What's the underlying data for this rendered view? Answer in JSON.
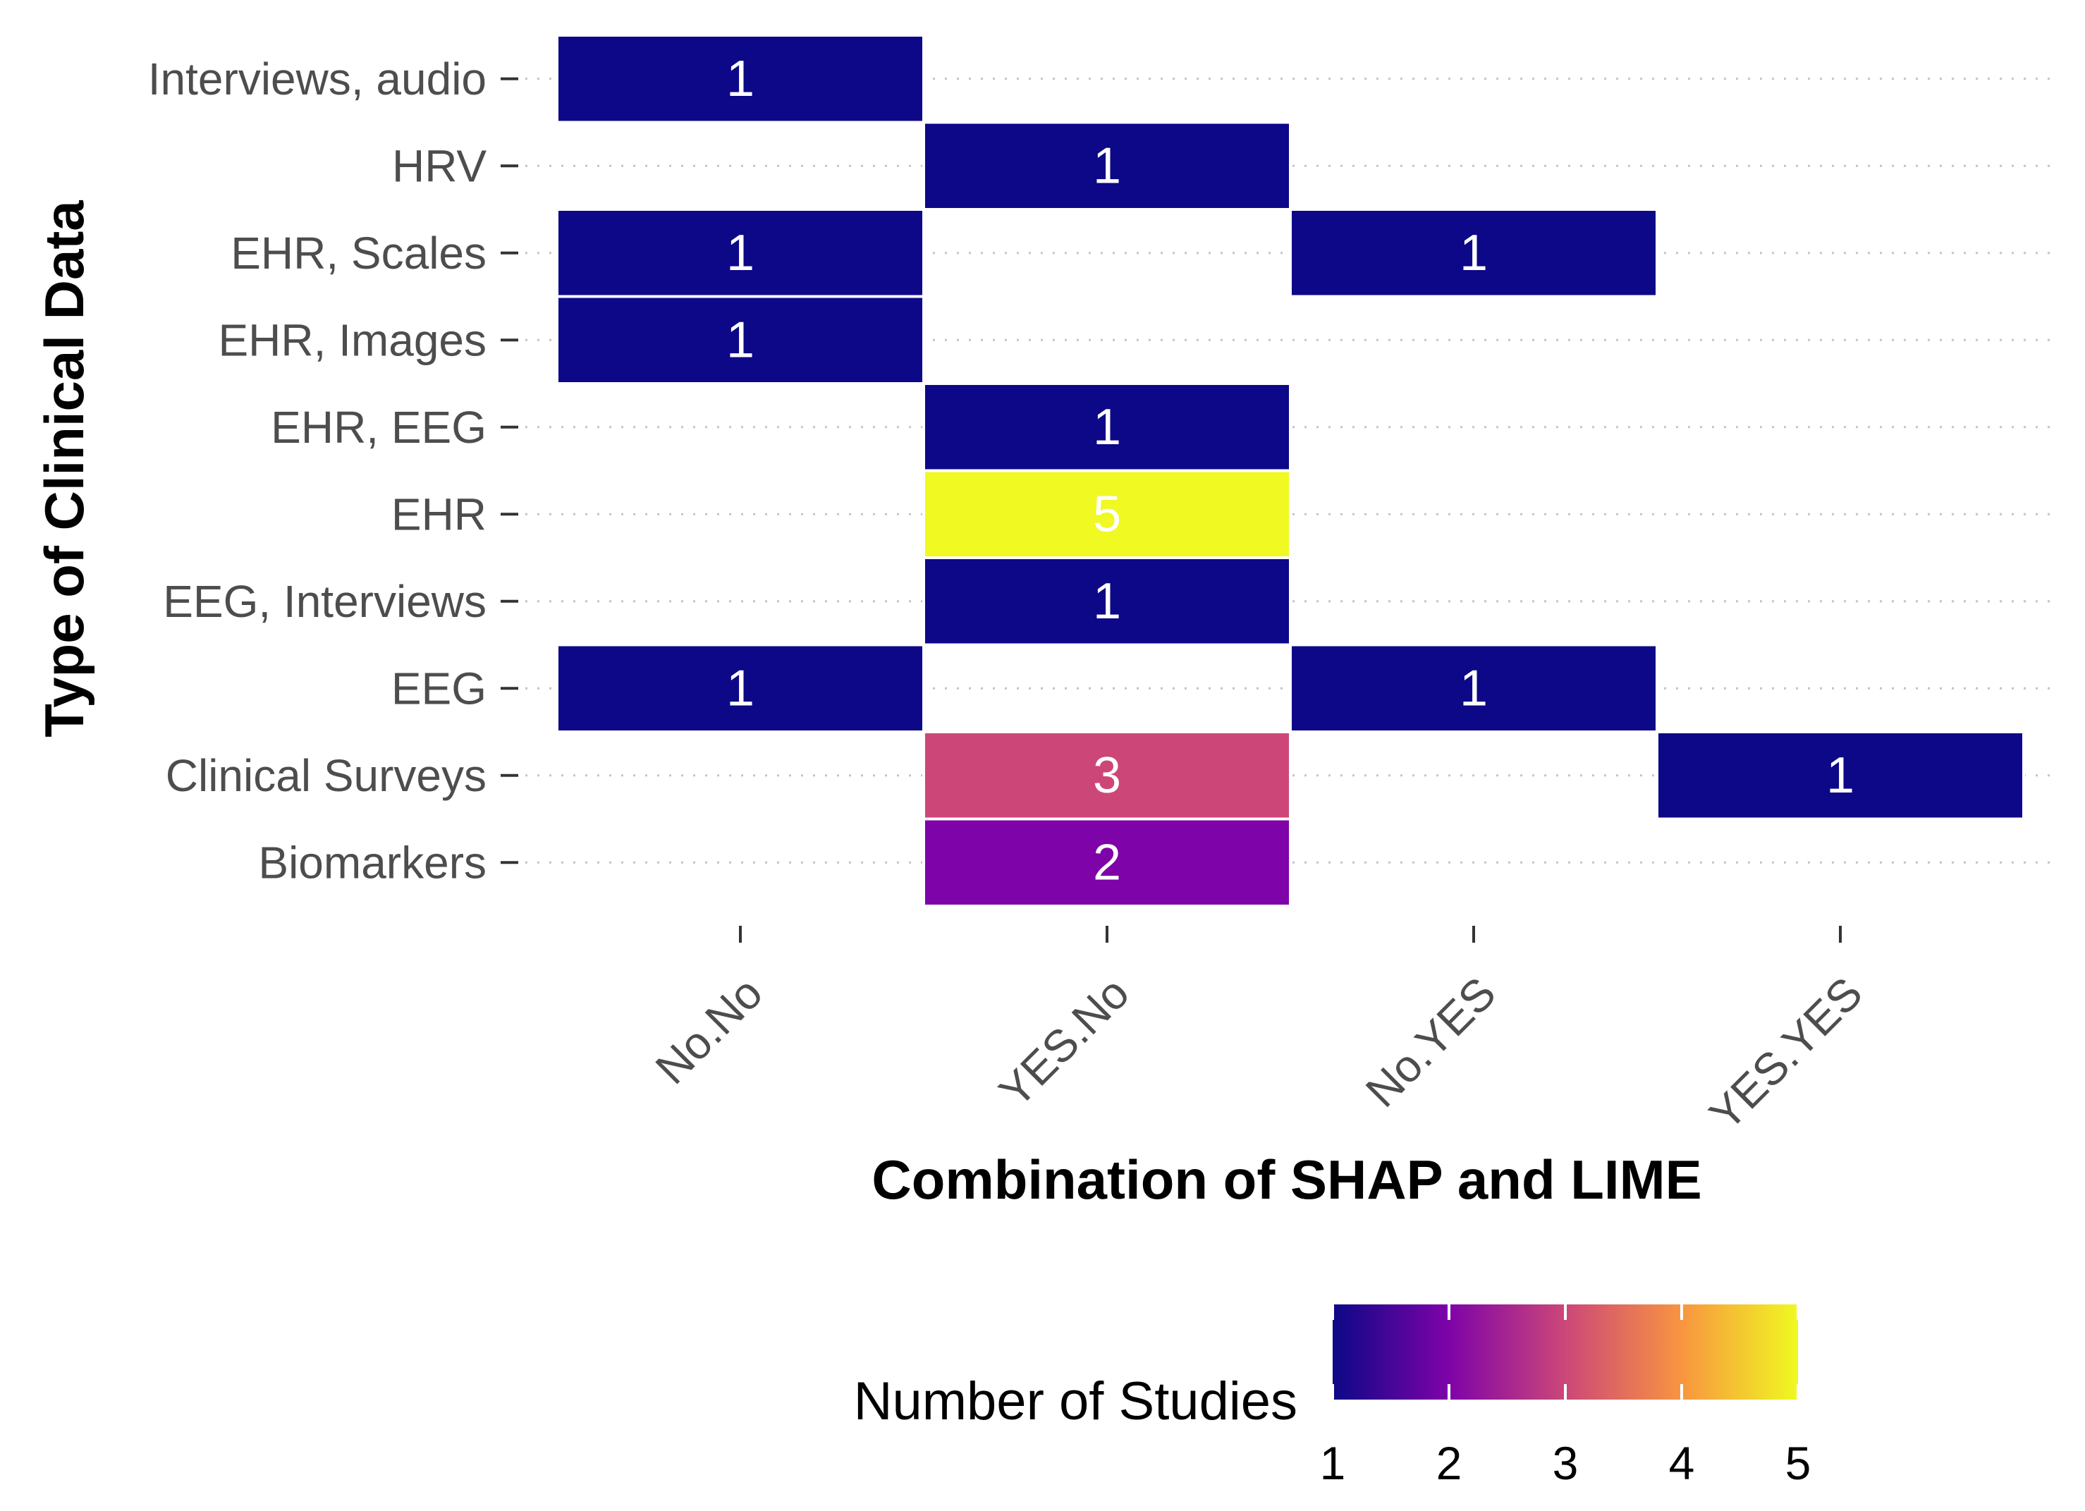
{
  "chart_data": {
    "type": "heatmap",
    "xlabel": "Combination of SHAP and LIME",
    "ylabel": "Type of Clinical Data",
    "x_categories": [
      "No.No",
      "YES.No",
      "No.YES",
      "YES.YES"
    ],
    "y_categories": [
      "Interviews, audio",
      "HRV",
      "EHR, Scales",
      "EHR, Images",
      "EHR, EEG",
      "EHR",
      "EEG, Interviews",
      "EEG",
      "Clinical Surveys",
      "Biomarkers"
    ],
    "cells": [
      {
        "x": "No.No",
        "y": "Interviews, audio",
        "value": 1
      },
      {
        "x": "YES.No",
        "y": "HRV",
        "value": 1
      },
      {
        "x": "No.No",
        "y": "EHR, Scales",
        "value": 1
      },
      {
        "x": "No.YES",
        "y": "EHR, Scales",
        "value": 1
      },
      {
        "x": "No.No",
        "y": "EHR, Images",
        "value": 1
      },
      {
        "x": "YES.No",
        "y": "EHR, EEG",
        "value": 1
      },
      {
        "x": "YES.No",
        "y": "EHR",
        "value": 5
      },
      {
        "x": "YES.No",
        "y": "EEG, Interviews",
        "value": 1
      },
      {
        "x": "No.No",
        "y": "EEG",
        "value": 1
      },
      {
        "x": "No.YES",
        "y": "EEG",
        "value": 1
      },
      {
        "x": "YES.No",
        "y": "Clinical Surveys",
        "value": 3
      },
      {
        "x": "YES.YES",
        "y": "Clinical Surveys",
        "value": 1
      },
      {
        "x": "YES.No",
        "y": "Biomarkers",
        "value": 2
      }
    ],
    "color_scale": {
      "name": "plasma",
      "min": 1,
      "max": 5,
      "stops": [
        "#0D0887",
        "#7E03A8",
        "#CC4778",
        "#F89540",
        "#F0F921"
      ]
    },
    "legend": {
      "title": "Number of Studies",
      "ticks": [
        1,
        2,
        3,
        4,
        5
      ],
      "position": "bottom"
    },
    "grid": "horizontal dotted"
  }
}
